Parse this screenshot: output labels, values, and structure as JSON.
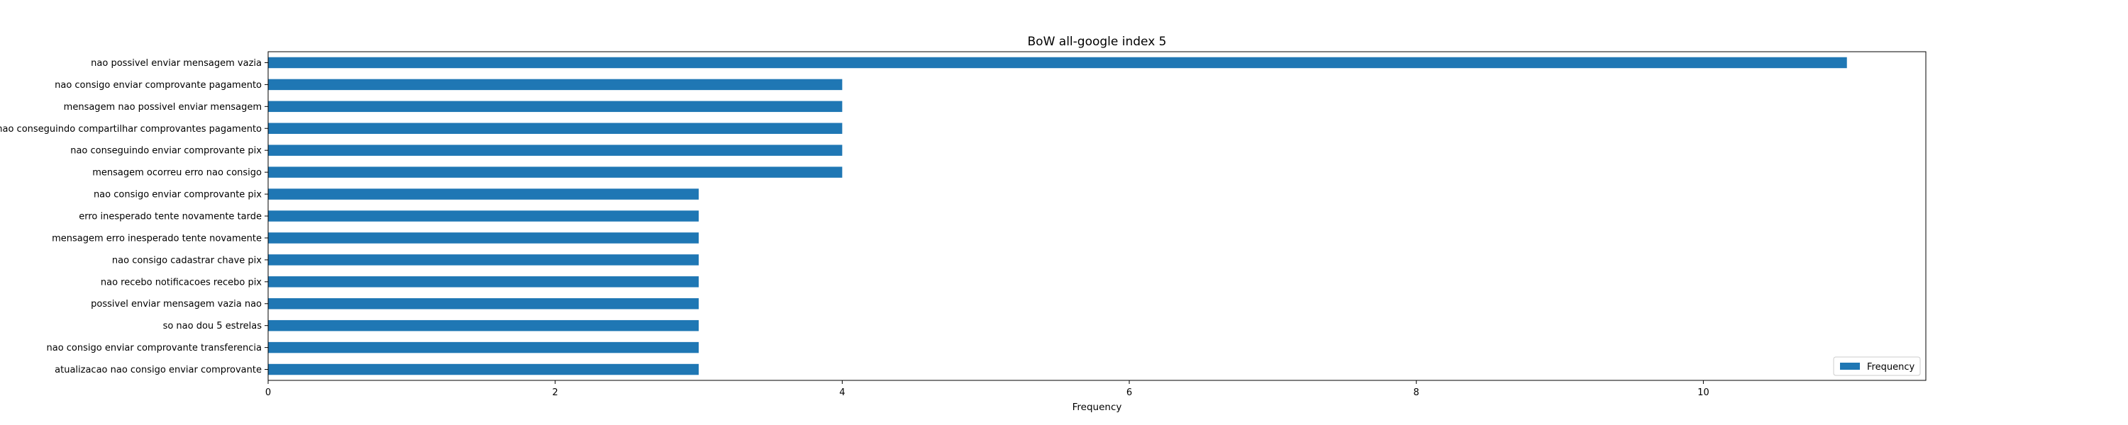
{
  "chart_data": {
    "type": "bar",
    "orientation": "horizontal",
    "title": "BoW all-google index 5",
    "xlabel": "Frequency",
    "ylabel": "",
    "xlim": [
      0,
      11.55
    ],
    "xticks": [
      0,
      2,
      4,
      6,
      8,
      10
    ],
    "grid": false,
    "legend_position": "lower-right",
    "bar_color": "#1f77b4",
    "categories": [
      "nao possivel enviar mensagem vazia",
      "nao consigo enviar comprovante pagamento",
      "mensagem nao possivel enviar mensagem",
      "nao conseguindo compartilhar comprovantes pagamento",
      "nao conseguindo enviar comprovante pix",
      "mensagem ocorreu erro nao consigo",
      "nao consigo enviar comprovante pix",
      "erro inesperado tente novamente tarde",
      "mensagem erro inesperado tente novamente",
      "nao consigo cadastrar chave pix",
      "nao recebo notificacoes recebo pix",
      "possivel enviar mensagem vazia nao",
      "so nao dou 5 estrelas",
      "nao consigo enviar comprovante transferencia",
      "atualizacao nao consigo enviar comprovante"
    ],
    "series": [
      {
        "name": "Frequency",
        "values": [
          11,
          4,
          4,
          4,
          4,
          4,
          3,
          3,
          3,
          3,
          3,
          3,
          3,
          3,
          3
        ]
      }
    ]
  }
}
